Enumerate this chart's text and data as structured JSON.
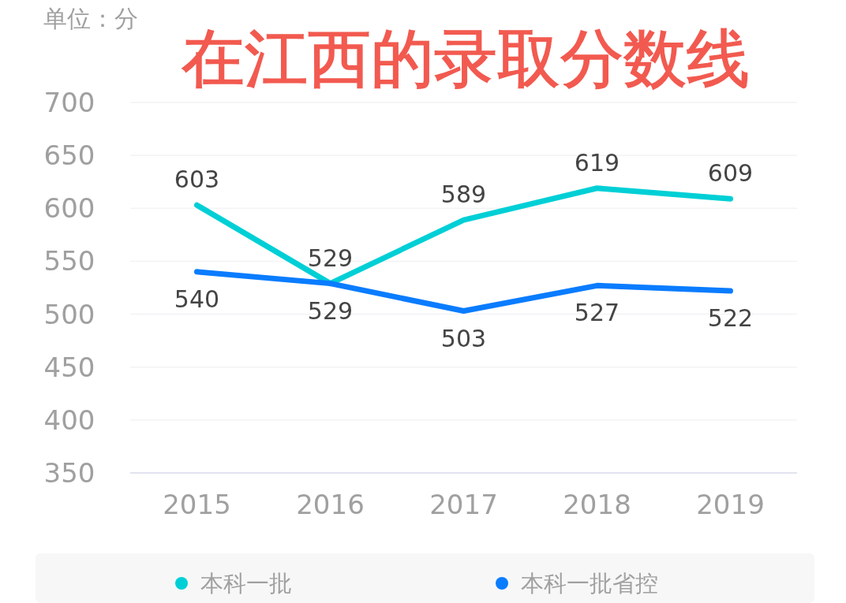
{
  "chart_data": {
    "type": "line",
    "title": "在江西的录取分数线",
    "ylabel": "单位：分",
    "categories": [
      "2015",
      "2016",
      "2017",
      "2018",
      "2019"
    ],
    "series": [
      {
        "name": "本科一批",
        "color": "#00cfd6",
        "values": [
          603,
          529,
          589,
          619,
          609
        ]
      },
      {
        "name": "本科一批省控",
        "color": "#0a7cff",
        "values": [
          540,
          529,
          503,
          527,
          522
        ]
      }
    ],
    "ylim": [
      350,
      700
    ],
    "yticks": [
      350,
      400,
      450,
      500,
      550,
      600,
      650,
      700
    ],
    "grid": "y",
    "legend": "bottom",
    "data_labels": true,
    "marker": "none",
    "line_style": "solid"
  }
}
